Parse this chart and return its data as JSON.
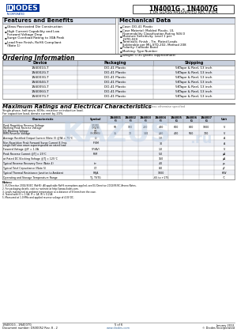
{
  "title": "1N4001G - 1N4007G",
  "subtitle": "1.0A GLASS PASSIVATED RECTIFIER",
  "features_title": "Features and Benefits",
  "features": [
    "Glass Passivated Die Construction",
    "High Current Capability and Low Forward Voltage Drop",
    "Surge Overload Rating to 30A Peak",
    "Lead Free Finish, RoHS Compliant (Note 1)"
  ],
  "mechanical_title": "Mechanical Data",
  "mechanical": [
    "Case: DO-41 Plastic",
    "Case Material: Molded Plastic, UL Flammability Classification Rating 94V-0",
    "Moisture Sensitivity: Level 1 per J-STD-020",
    "Terminals: Finish - Tin. Plated Leads Solderable per MIL-STD-202, Method 208",
    "Polarity: Cathode Band",
    "Marking: Type Number",
    "Weight: 0.30 grams (approximate)"
  ],
  "ordering_title": "Ordering Information",
  "ordering_note": "(Note 2)",
  "ordering_headers": [
    "Device",
    "Packaging",
    "Shipping"
  ],
  "ordering_rows": [
    [
      "1N4001G-T",
      "DO-41 Plastic",
      "5KTape & Reel, 13 inch"
    ],
    [
      "1N4002G-T",
      "DO-41 Plastic",
      "5KTape & Reel, 13 inch"
    ],
    [
      "1N4003G-T",
      "DO-41 Plastic",
      "5KTape & Reel, 13 inch"
    ],
    [
      "1N4004G-T",
      "DO-41 Plastic",
      "5KTape & Reel, 13 inch"
    ],
    [
      "1N4005G-T",
      "DO-41 Plastic",
      "5KTape & Reel, 13 inch"
    ],
    [
      "1N4006G-T",
      "DO-41 Plastic",
      "5KTape & Reel, 13 inch"
    ],
    [
      "1N4007G-T",
      "DO-41 Plastic",
      "5KTape & Reel, 13 inch"
    ]
  ],
  "max_ratings_title": "Maximum Ratings and Electrical Characteristics",
  "max_ratings_note": "@T₁ = 25°C unless otherwise specified",
  "max_ratings_note2a": "Single phase, half-wave, 60Hz, resistive or inductive load.",
  "max_ratings_note2b": "For capacitive load, derate current by 20%.",
  "char_rows": [
    [
      "Peak Repetitive Reverse Voltage\nWorking Peak Reverse Voltage\nDC Blocking Voltage",
      "VRRM\nVRWM\nVR",
      "50",
      "100",
      "200",
      "400",
      "600",
      "800",
      "1000",
      "V"
    ],
    [
      "RMS Reverse Voltage",
      "VR(RMS)",
      "35",
      "70",
      "140",
      "280",
      "420",
      "560",
      "700",
      "V"
    ],
    [
      "Average Rectified Output Current (Note 3) @TA = 75°C",
      "IO",
      "",
      "",
      "",
      "1.0",
      "",
      "",
      "",
      "A"
    ],
    [
      "Non-Repetitive Peak Forward Surge Current 8.3ms\nsingle half sine wave superimposed on rated load",
      "IFSM",
      "",
      "",
      "",
      "30",
      "",
      "",
      "",
      "A"
    ],
    [
      "Forward Voltage @IF = 1.0A",
      "VF(AV)",
      "",
      "",
      "",
      "1.0",
      "",
      "",
      "",
      "V"
    ],
    [
      "Peak Reverse Current @TJ = 25°C",
      "IRM",
      "",
      "",
      "",
      "5.0",
      "",
      "",
      "",
      "µA"
    ],
    [
      "at Rated DC Blocking Voltage @TJ = 125°C",
      "",
      "",
      "",
      "",
      "150",
      "",
      "",
      "",
      "µA"
    ],
    [
      "Typical Reverse Recovery Time (Note 4)",
      "trr",
      "",
      "",
      "",
      "4.0",
      "",
      "",
      "",
      "µs"
    ],
    [
      "Typical Total Capacitance (Note 5)",
      "CT",
      "",
      "",
      "",
      "8.0",
      "",
      "",
      "",
      "pF"
    ],
    [
      "Typical Thermal Resistance Junction to Ambient",
      "RθJA",
      "",
      "",
      "",
      "1000",
      "",
      "",
      "",
      "K/W"
    ],
    [
      "Operating and Storage Temperature Range",
      "TJ, TSTG",
      "",
      "",
      "",
      "-65 to +175",
      "",
      "",
      "",
      "°C"
    ]
  ],
  "notes": [
    "1. EU Directive 2002/95/EC (RoHS). All applicable RoHS exemptions applied, see EU Directive 2002/95/EC Annex Notes.",
    "2. For packaging details, visit our website at http://www.diodes.com.",
    "3. Leads maintained at ambient temperature at a distance of 9.5mm from the case.",
    "4. Tested with IO = 1.0A, IF = 1A, IR = 0.25A.",
    "5. Measured at 1.0 MHz and applied reverse voltage of 4.0V DC."
  ],
  "footer_left1": "1N4001G - 1N4007G",
  "footer_left2": "Document number: DS30052 Rev. 8 - 2",
  "footer_center1": "5 of 6",
  "footer_center2": "www.diodes.com",
  "footer_right1": "January 2012",
  "footer_right2": "© Diodes Incorporated",
  "bg_color": "#ffffff",
  "section_header_bg": "#dce3ef",
  "table_header_bg": "#c8d0de",
  "table_row_alt": "#eceef4",
  "border_dark": "#444444",
  "border_mid": "#888888",
  "border_light": "#aaaaaa",
  "text_dark": "#000000",
  "text_mid": "#333333",
  "text_light": "#666666",
  "red_color": "#c8000a",
  "blue_dark": "#003399",
  "blue_mid": "#336699",
  "watermark_color": "#b8cce4"
}
